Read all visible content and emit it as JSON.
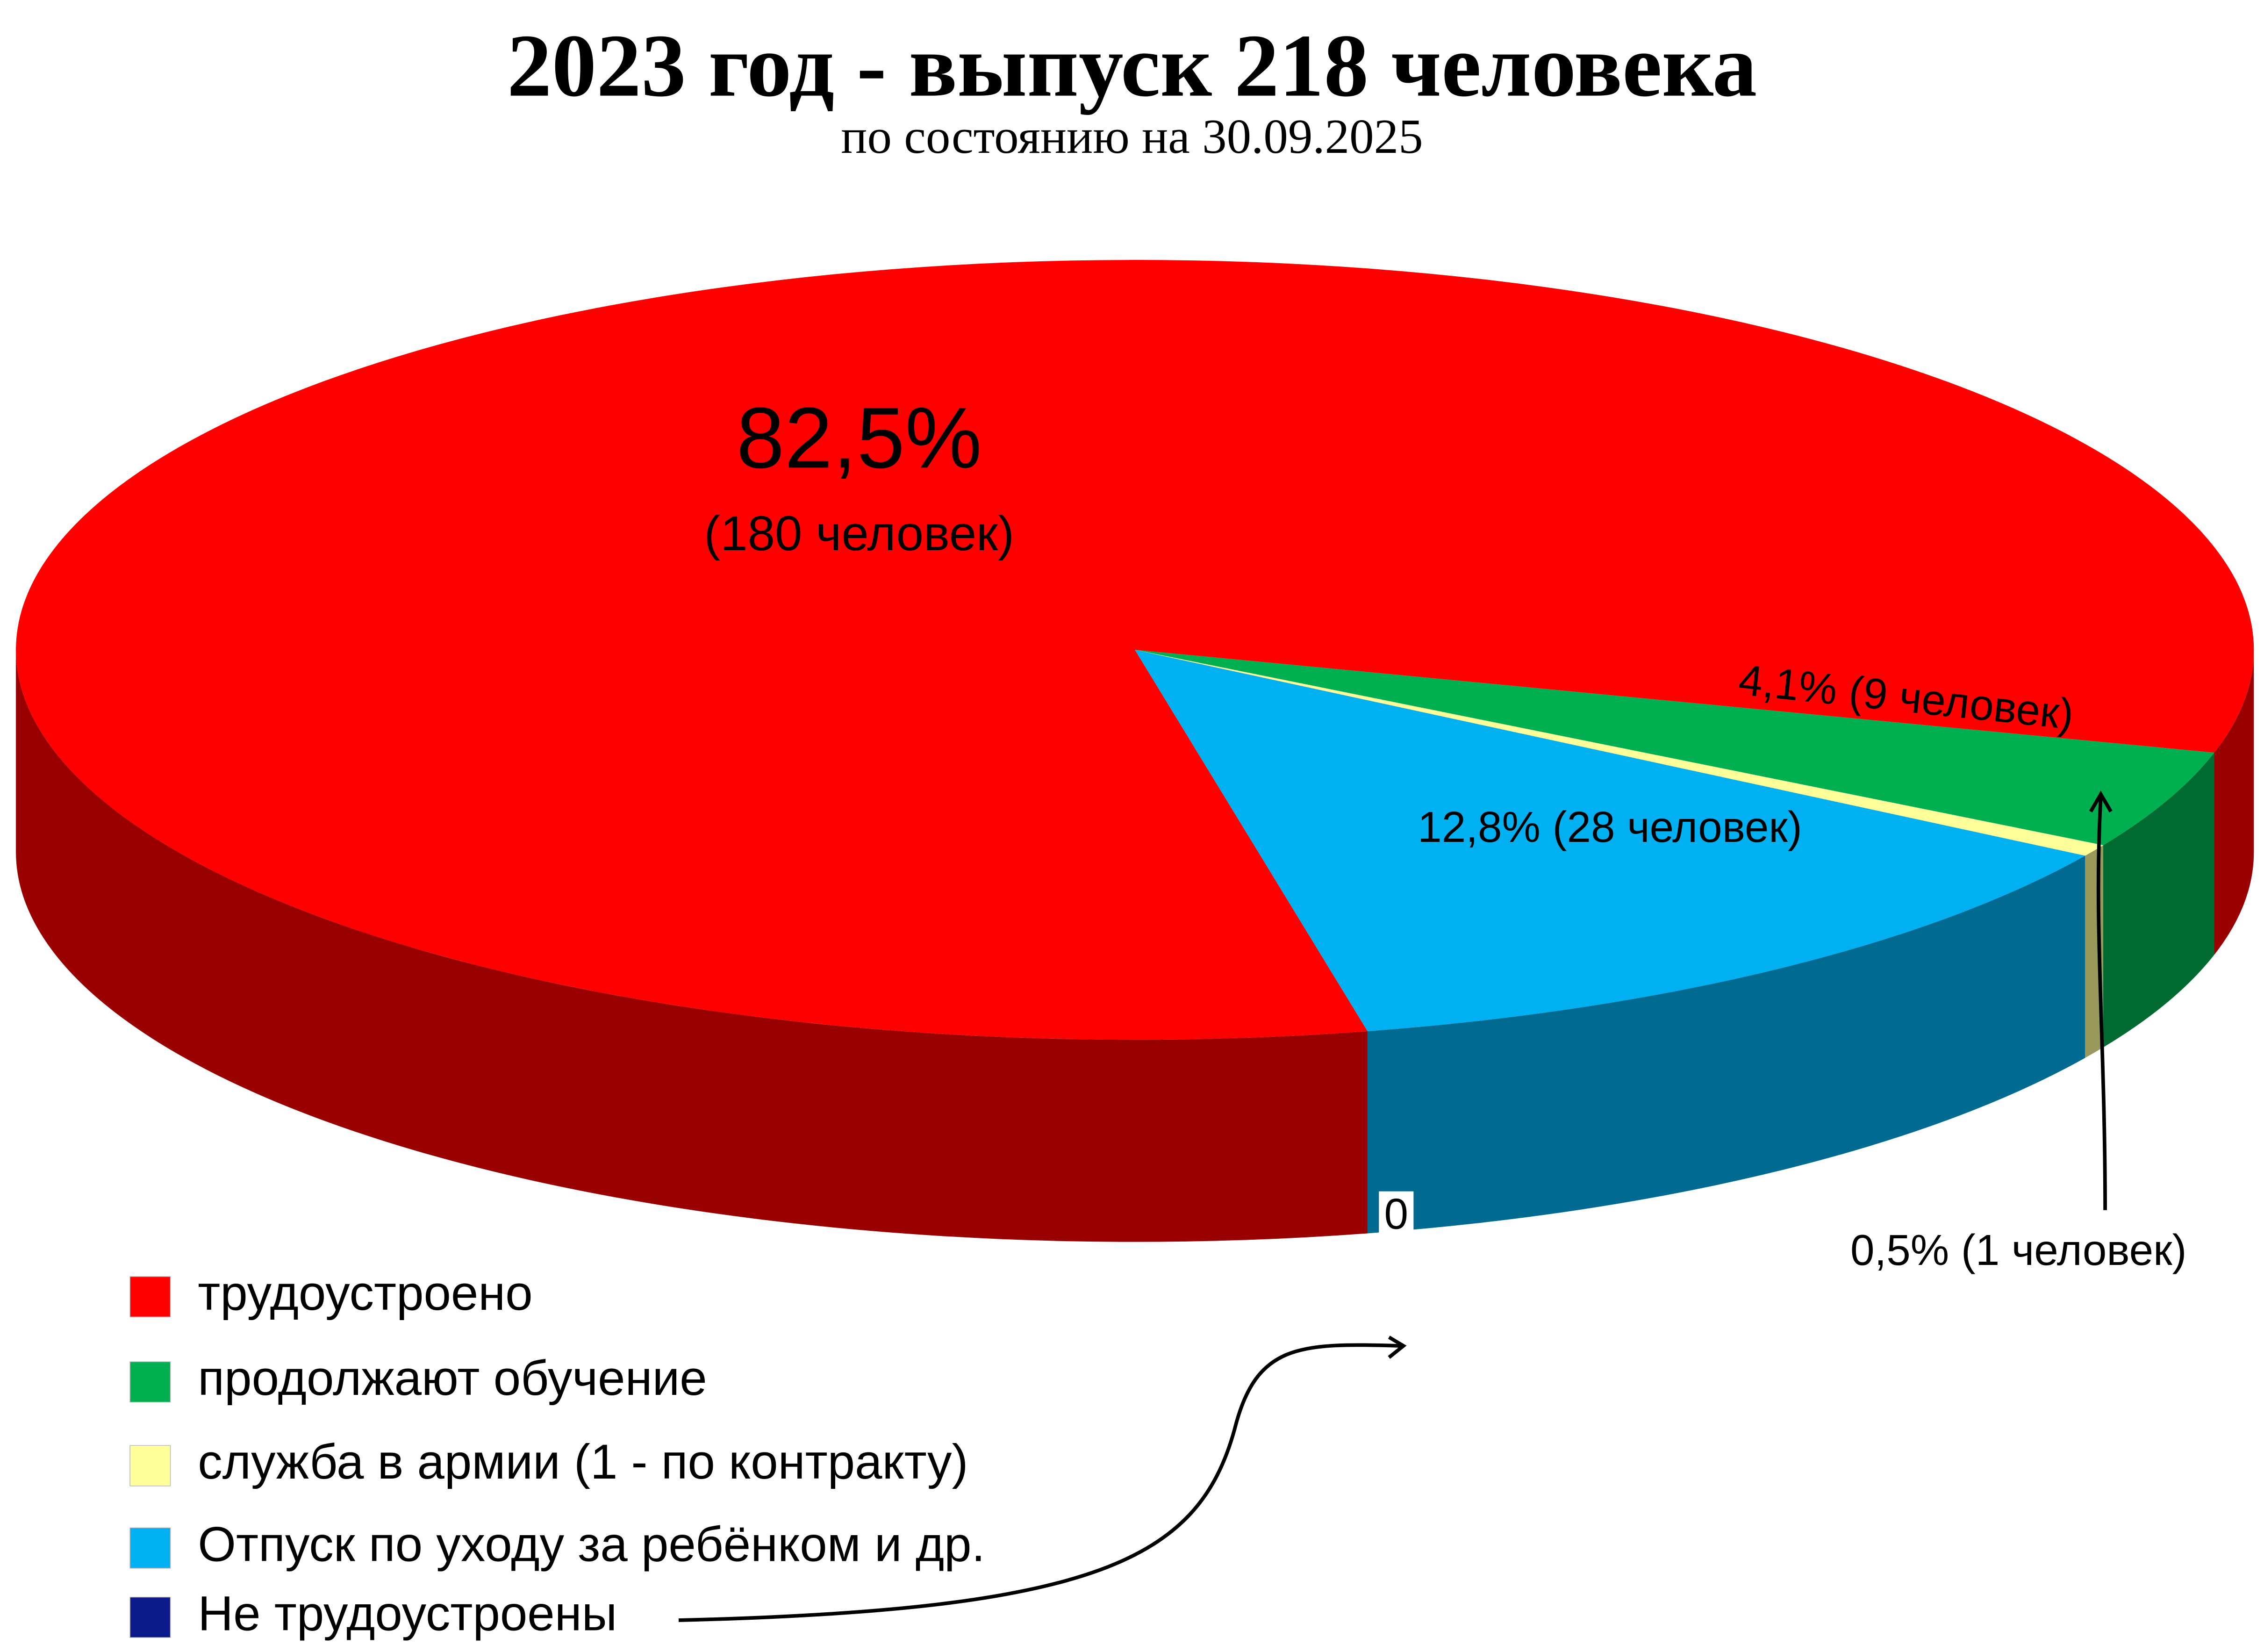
{
  "chart_data": {
    "type": "pie",
    "title": "2023 год - выпуск 218 человека",
    "subtitle": "по состоянию на 30.09.2025",
    "categories": [
      "трудоустроено",
      "продолжают обучение",
      "служба в армии (1 - по контракту)",
      "Отпуск по уходу за ребёнком и др.",
      "Не трудоустроены"
    ],
    "values": [
      82.5,
      4.1,
      0.5,
      12.8,
      0
    ],
    "value_labels": [
      "82,5%",
      "4,1% (9 человек)",
      "0,5% (1 человек)",
      "12,8% (28 человек)",
      "0"
    ],
    "annotations": [
      "(180 человек)"
    ],
    "colors": [
      "#ff0000",
      "#00b050",
      "#ffff99",
      "#00b0f0",
      "#0d1a8c"
    ],
    "legend": "bottom-left"
  }
}
